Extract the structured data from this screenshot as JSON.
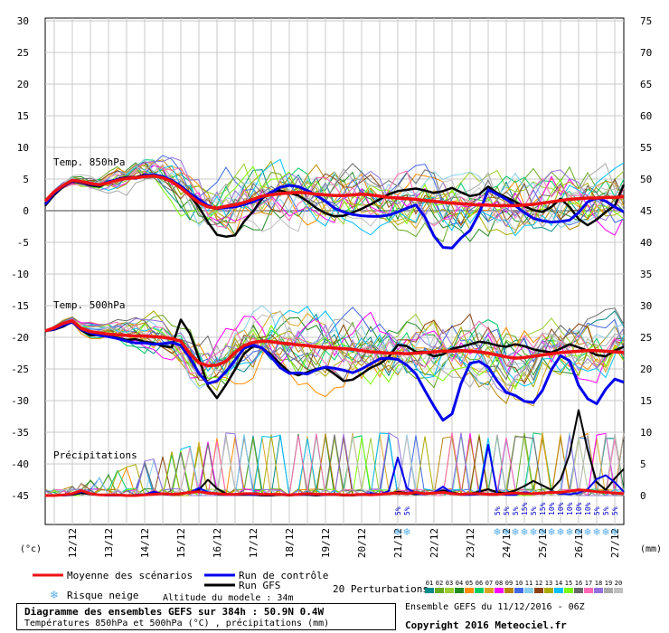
{
  "chart_data": {
    "type": "line",
    "title": "Diagramme des ensembles GEFS sur 384h : 50.9N 0.4W",
    "subtitle": "Températures 850hPa et 500hPa (°C) , précipitations (mm)",
    "left_axis_unit": "(°c)",
    "right_axis_unit": "(mm)",
    "left_ticks": [
      30,
      25,
      20,
      15,
      10,
      5,
      0,
      -5,
      -10,
      -15,
      -20,
      -25,
      -30,
      -35,
      -40,
      -45
    ],
    "right_ticks": [
      75,
      70,
      65,
      60,
      55,
      50,
      45,
      40,
      35,
      30,
      25,
      20,
      15,
      10,
      5,
      0
    ],
    "ylim_left": [
      -45,
      30
    ],
    "xlim_days": [
      11.25,
      27.25
    ],
    "x_dates": [
      "12/12",
      "13/12",
      "14/12",
      "15/12",
      "16/12",
      "17/12",
      "18/12",
      "19/12",
      "20/12",
      "21/12",
      "22/12",
      "23/12",
      "24/12",
      "25/12",
      "26/12",
      "27/12"
    ],
    "panel_labels": {
      "t850": "Temp. 850hPa",
      "t500": "Temp. 500hPa",
      "precip": "Précipitations"
    },
    "time_step_days": 0.25,
    "series": [
      {
        "name": "Moyenne des scénarios",
        "color": "#ee1111",
        "t850": [
          1.5,
          3.0,
          4.0,
          4.8,
          4.6,
          4.3,
          4.1,
          4.4,
          4.8,
          5.1,
          5.2,
          5.4,
          5.5,
          5.2,
          4.6,
          3.6,
          2.4,
          1.3,
          0.6,
          0.4,
          0.7,
          0.9,
          1.3,
          1.8,
          2.3,
          2.5,
          2.7,
          2.8,
          2.9,
          2.8,
          2.6,
          2.5,
          2.4,
          2.4,
          2.5,
          2.6,
          2.5,
          2.3,
          2.1,
          2.0,
          1.9,
          1.8,
          1.6,
          1.5,
          1.3,
          1.2,
          1.1,
          1.0,
          0.9,
          0.9,
          0.8,
          0.8,
          0.8,
          0.9,
          1.0,
          1.2,
          1.4,
          1.6,
          1.8,
          1.9,
          2.0,
          2.0,
          2.1,
          2.1,
          2.2
        ],
        "t500": [
          -19.0,
          -18.5,
          -17.8,
          -17.4,
          -18.6,
          -19.1,
          -19.3,
          -19.5,
          -19.6,
          -19.7,
          -19.8,
          -19.8,
          -19.9,
          -20.0,
          -20.2,
          -20.6,
          -22.6,
          -24.0,
          -24.5,
          -24.4,
          -23.8,
          -22.4,
          -21.3,
          -20.8,
          -20.6,
          -20.7,
          -20.9,
          -21.0,
          -21.2,
          -21.3,
          -21.5,
          -21.6,
          -21.7,
          -21.8,
          -21.9,
          -22.1,
          -22.3,
          -22.4,
          -22.5,
          -22.5,
          -22.6,
          -22.5,
          -22.4,
          -22.3,
          -22.2,
          -22.2,
          -22.1,
          -22.2,
          -22.3,
          -22.5,
          -22.8,
          -23.1,
          -23.3,
          -23.2,
          -23.0,
          -22.8,
          -22.6,
          -22.4,
          -22.3,
          -22.2,
          -22.1,
          -22.1,
          -22.2,
          -22.3,
          -22.4
        ],
        "precip": [
          0,
          0,
          0.1,
          0.3,
          0.8,
          0.3,
          0.1,
          0.1,
          0.1,
          0,
          0,
          0.1,
          0.2,
          0.3,
          0.2,
          0.3,
          0.5,
          0.6,
          0.4,
          0.3,
          0.2,
          0.2,
          0.3,
          0.3,
          0.2,
          0.2,
          0.2,
          0.1,
          0.2,
          0.3,
          0.2,
          0.2,
          0.2,
          0.1,
          0.1,
          0.2,
          0.1,
          0.2,
          0.3,
          0.4,
          0.3,
          0.5,
          0.3,
          0.4,
          0.5,
          0.3,
          0.2,
          0.3,
          0.3,
          0.2,
          0.2,
          0.3,
          0.4,
          0.3,
          0.3,
          0.4,
          0.5,
          0.5,
          0.7,
          0.9,
          0.8,
          0.6,
          0.5,
          0.4,
          0.3
        ]
      },
      {
        "name": "Run de contrôle",
        "color": "#0000ee",
        "t850": [
          1.0,
          2.8,
          3.9,
          4.7,
          4.5,
          4.2,
          4.0,
          4.6,
          4.9,
          5.2,
          5.1,
          5.6,
          5.7,
          5.4,
          4.8,
          3.9,
          2.7,
          1.8,
          0.8,
          0.3,
          0.5,
          0.6,
          1.0,
          1.4,
          2.1,
          2.9,
          3.7,
          4.0,
          3.8,
          3.2,
          2.4,
          1.5,
          0.4,
          -0.2,
          -0.6,
          -0.8,
          -0.9,
          -0.9,
          -0.7,
          -0.2,
          0.4,
          0.9,
          -1.0,
          -4.0,
          -5.8,
          -5.9,
          -4.3,
          -3.1,
          -0.4,
          3.3,
          2.6,
          1.8,
          0.8,
          -0.3,
          -1.2,
          -1.6,
          -1.8,
          -1.7,
          -1.5,
          -0.3,
          1.4,
          2.0,
          1.5,
          0.6,
          -0.2
        ],
        "t500": [
          -19.0,
          -18.7,
          -18.1,
          -17.6,
          -18.8,
          -19.3,
          -19.7,
          -19.9,
          -20.2,
          -20.6,
          -20.9,
          -20.9,
          -21.1,
          -21.0,
          -20.8,
          -21.3,
          -23.2,
          -25.7,
          -27.3,
          -26.9,
          -25.4,
          -23.6,
          -21.7,
          -21.2,
          -21.7,
          -23.1,
          -24.8,
          -25.7,
          -25.6,
          -25.8,
          -25.1,
          -24.7,
          -24.9,
          -25.2,
          -25.6,
          -25.0,
          -24.2,
          -23.4,
          -23.3,
          -23.5,
          -24.4,
          -25.8,
          -28.4,
          -30.9,
          -33.1,
          -32.1,
          -27.3,
          -24.1,
          -23.8,
          -24.7,
          -26.9,
          -28.7,
          -29.2,
          -30.1,
          -30.3,
          -28.4,
          -25.1,
          -22.9,
          -23.7,
          -27.6,
          -29.7,
          -30.5,
          -28.2,
          -26.6,
          -27.1
        ],
        "precip": [
          0,
          0,
          0,
          0.2,
          0.6,
          0.3,
          0.1,
          0,
          0,
          0,
          0.1,
          0.2,
          0.6,
          0.3,
          0.1,
          0.4,
          0.5,
          1.2,
          0.5,
          0.2,
          0.1,
          0.1,
          0.2,
          0.1,
          0.1,
          0.1,
          0.2,
          0.1,
          0.1,
          0.2,
          0.1,
          0.1,
          0.2,
          0.1,
          0.1,
          0.1,
          0.4,
          0.2,
          0.7,
          6.0,
          1.2,
          0.3,
          0.2,
          0.5,
          1.4,
          0.4,
          0.1,
          0.1,
          0.2,
          8.0,
          0.3,
          0.1,
          0.1,
          0.5,
          0.3,
          0.4,
          0.6,
          0.3,
          0.2,
          0.4,
          1.0,
          2.6,
          3.2,
          2.1,
          0.6
        ]
      },
      {
        "name": "Run GFS",
        "color": "#000000",
        "t850": [
          0.8,
          2.5,
          3.8,
          4.6,
          4.4,
          4.0,
          3.8,
          4.5,
          5.0,
          5.3,
          5.3,
          5.7,
          5.6,
          5.3,
          4.7,
          3.8,
          2.4,
          0.6,
          -1.8,
          -3.8,
          -4.1,
          -3.9,
          -1.7,
          -0.1,
          1.9,
          3.0,
          3.2,
          2.8,
          2.4,
          1.5,
          0.4,
          -0.4,
          -0.9,
          -0.8,
          -0.3,
          0.3,
          1.0,
          1.8,
          2.6,
          3.1,
          3.3,
          3.5,
          3.2,
          2.8,
          3.1,
          3.6,
          2.9,
          2.3,
          2.6,
          3.8,
          2.8,
          2.1,
          1.4,
          0.7,
          0.1,
          -0.2,
          0.6,
          1.9,
          0.6,
          -1.3,
          -2.3,
          -1.4,
          -0.2,
          0.8,
          4.1
        ],
        "t500": [
          -19.0,
          -18.8,
          -18.3,
          -17.5,
          -18.9,
          -19.7,
          -19.6,
          -19.8,
          -20.1,
          -20.4,
          -20.3,
          -20.7,
          -20.9,
          -21.4,
          -21.6,
          -17.2,
          -19.4,
          -23.3,
          -27.7,
          -29.6,
          -27.5,
          -25.1,
          -22.6,
          -21.4,
          -21.7,
          -22.8,
          -24.2,
          -25.5,
          -26.0,
          -25.5,
          -25.0,
          -24.8,
          -25.8,
          -26.9,
          -26.7,
          -25.8,
          -24.8,
          -24.2,
          -23.1,
          -21.2,
          -21.4,
          -22.3,
          -22.3,
          -23.0,
          -22.7,
          -21.8,
          -21.5,
          -21.1,
          -20.7,
          -20.9,
          -21.3,
          -21.5,
          -21.1,
          -21.4,
          -21.9,
          -22.2,
          -22.4,
          -21.8,
          -21.1,
          -21.6,
          -22.1,
          -22.8,
          -23.0,
          -22.1,
          -21.5
        ],
        "precip": [
          0,
          0,
          0,
          0.1,
          0.4,
          0.2,
          0.1,
          0,
          0,
          0,
          0,
          0.1,
          0.3,
          0.2,
          0.1,
          0.3,
          0.4,
          0.9,
          2.5,
          1.1,
          0.3,
          0.1,
          0.1,
          0.1,
          0,
          0,
          0.1,
          0,
          0.1,
          0.1,
          0,
          0.1,
          0.1,
          0,
          0,
          0.1,
          0.1,
          0.2,
          0.3,
          0.6,
          0.4,
          0.2,
          0.3,
          0.4,
          0.8,
          0.5,
          0.2,
          0.3,
          0.6,
          1.0,
          0.5,
          0.4,
          0.8,
          1.5,
          2.3,
          1.6,
          0.9,
          2.5,
          6.5,
          13.5,
          7.2,
          2.1,
          0.9,
          2.7,
          4.2
        ]
      }
    ],
    "perturbations": {
      "count": 20,
      "labels": [
        "01",
        "02",
        "03",
        "04",
        "05",
        "06",
        "07",
        "08",
        "09",
        "10",
        "11",
        "12",
        "13",
        "14",
        "15",
        "16",
        "17",
        "18",
        "19",
        "20"
      ],
      "colors": [
        "#008b8b",
        "#66aa22",
        "#9acd32",
        "#228b22",
        "#ff8c00",
        "#00cc66",
        "#daa520",
        "#ff00ff",
        "#b8860b",
        "#4169e1",
        "#87ceeb",
        "#8b4513",
        "#aaaa00",
        "#00bfff",
        "#7cfc00",
        "#696969",
        "#ff69b4",
        "#9370db",
        "#a9a9a9",
        "#c0c0c0"
      ],
      "legend_label": "20 Perturbations"
    },
    "snow_risk": {
      "label": "Risque neige",
      "marks": [
        {
          "day": 21.0,
          "prob": "5%"
        },
        {
          "day": 21.25,
          "prob": "5%"
        },
        {
          "day": 23.75,
          "prob": "5%"
        },
        {
          "day": 24.0,
          "prob": "5%"
        },
        {
          "day": 24.25,
          "prob": "5%"
        },
        {
          "day": 24.5,
          "prob": "15%"
        },
        {
          "day": 24.75,
          "prob": "5%"
        },
        {
          "day": 25.0,
          "prob": "15%"
        },
        {
          "day": 25.25,
          "prob": "10%"
        },
        {
          "day": 25.5,
          "prob": "10%"
        },
        {
          "day": 25.75,
          "prob": "10%"
        },
        {
          "day": 26.0,
          "prob": "10%"
        },
        {
          "day": 26.25,
          "prob": "10%"
        },
        {
          "day": 26.5,
          "prob": "5%"
        },
        {
          "day": 26.75,
          "prob": "5%"
        },
        {
          "day": 27.0,
          "prob": "5%"
        }
      ]
    },
    "model_altitude": "Altitude du modele : 34m",
    "ensemble_run": "Ensemble GEFS du 11/12/2016 - 06Z",
    "copyright": "Copyright 2016 Meteociel.fr"
  }
}
